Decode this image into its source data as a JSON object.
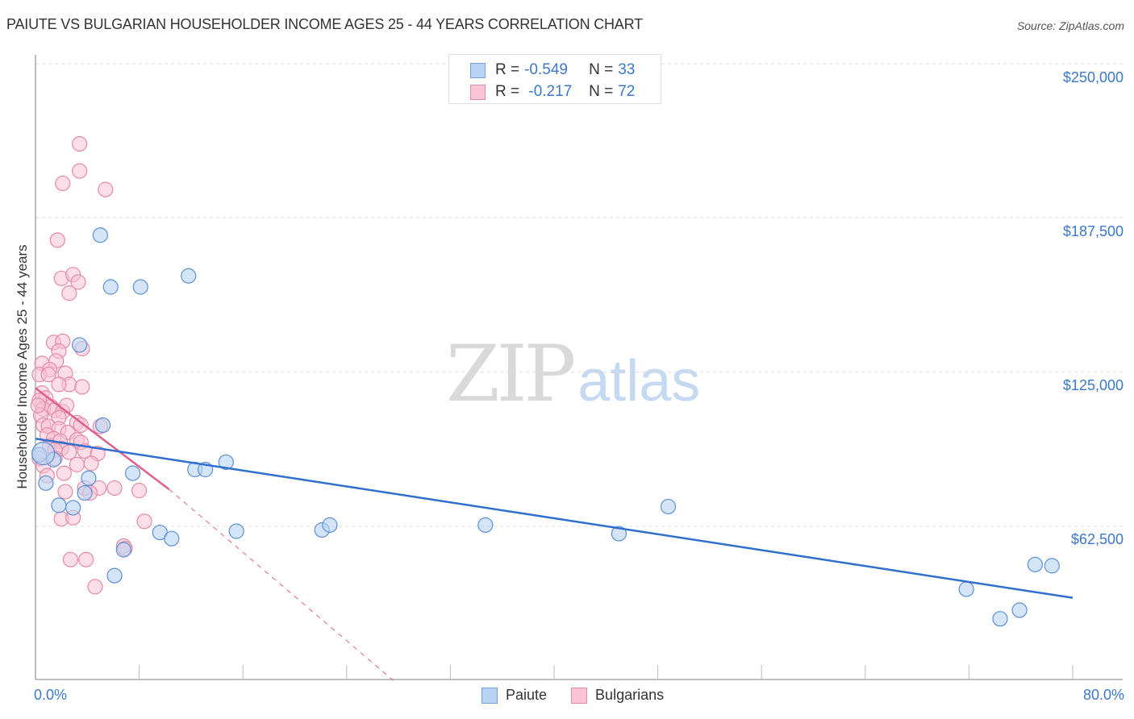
{
  "header": {
    "title": "PAIUTE VS BULGARIAN HOUSEHOLDER INCOME AGES 25 - 44 YEARS CORRELATION CHART",
    "source": "Source: ZipAtlas.com"
  },
  "watermark": {
    "zip": "ZIP",
    "atlas": "atlas"
  },
  "legend_top": {
    "rows": [
      {
        "series": "Paiute",
        "r_label": "R =",
        "r_value": "-0.549",
        "n_label": "N =",
        "n_value": "33"
      },
      {
        "series": "Bulgarians",
        "r_label": "R =",
        "r_value": " -0.217",
        "n_label": "N =",
        "n_value": "72"
      }
    ]
  },
  "legend_bottom": {
    "items": [
      {
        "label": "Paiute"
      },
      {
        "label": "Bulgarians"
      }
    ]
  },
  "axes": {
    "ylabel": "Householder Income Ages 25 - 44 years",
    "yticks": [
      "$250,000",
      "$187,500",
      "$125,000",
      "$62,500"
    ],
    "xtick_left": "0.0%",
    "xtick_right": "80.0%"
  },
  "colors": {
    "paiute_fill": "#b9d3f4",
    "paiute_stroke": "#5b8fd6",
    "paiute_line": "#2f6fcf",
    "bulgarian_fill": "#f8c3d3",
    "bulgarian_stroke": "#e68aa6",
    "bulgarian_line": "#e0608a",
    "tick_text": "#3b78c9"
  },
  "chart_data": {
    "type": "scatter",
    "title": "PAIUTE VS BULGARIAN HOUSEHOLDER INCOME AGES 25 - 44 YEARS CORRELATION CHART",
    "xlabel": "",
    "ylabel": "Householder Income Ages 25 - 44 years",
    "xlim": [
      0,
      80
    ],
    "ylim": [
      0,
      255000
    ],
    "x_unit": "%",
    "yticks": [
      62500,
      125000,
      187500,
      250000
    ],
    "grid": true,
    "legend_position": "top-center and bottom-center",
    "series": [
      {
        "name": "Paiute",
        "R": -0.549,
        "N": 33,
        "trend": {
          "x": [
            0,
            80
          ],
          "y": [
            98000,
            33500
          ]
        },
        "points": [
          [
            5.0,
            180500
          ],
          [
            5.8,
            159500
          ],
          [
            8.1,
            159500
          ],
          [
            11.8,
            164000
          ],
          [
            3.4,
            136000
          ],
          [
            5.2,
            103500
          ],
          [
            1.4,
            89500
          ],
          [
            0.3,
            91500
          ],
          [
            0.8,
            80000
          ],
          [
            4.1,
            82000
          ],
          [
            3.8,
            76000
          ],
          [
            1.8,
            71000
          ],
          [
            2.9,
            70000
          ],
          [
            7.5,
            84000
          ],
          [
            12.3,
            85500
          ],
          [
            13.1,
            85500
          ],
          [
            14.7,
            88500
          ],
          [
            9.6,
            60000
          ],
          [
            10.5,
            57500
          ],
          [
            6.8,
            53000
          ],
          [
            6.1,
            42500
          ],
          [
            15.5,
            60500
          ],
          [
            22.1,
            61000
          ],
          [
            22.7,
            63000
          ],
          [
            34.7,
            63000
          ],
          [
            45.0,
            59500
          ],
          [
            48.8,
            70500
          ],
          [
            71.8,
            37000
          ],
          [
            77.1,
            47000
          ],
          [
            78.4,
            46500
          ],
          [
            74.4,
            25000
          ],
          [
            75.9,
            28500
          ],
          [
            0.6,
            92000
          ]
        ]
      },
      {
        "name": "Bulgarians",
        "R": -0.217,
        "N": 72,
        "trend": {
          "x": [
            0,
            10.3
          ],
          "y": [
            118500,
            77500
          ],
          "dashed_extension_to": [
            27.6,
            0
          ]
        },
        "points": [
          [
            3.4,
            217500
          ],
          [
            3.4,
            206500
          ],
          [
            2.1,
            201500
          ],
          [
            5.4,
            199000
          ],
          [
            1.7,
            178500
          ],
          [
            2.0,
            163000
          ],
          [
            2.9,
            164500
          ],
          [
            3.3,
            161500
          ],
          [
            2.6,
            157000
          ],
          [
            1.4,
            137000
          ],
          [
            2.1,
            137500
          ],
          [
            1.8,
            133500
          ],
          [
            3.6,
            134500
          ],
          [
            1.6,
            129500
          ],
          [
            0.5,
            128500
          ],
          [
            1.1,
            126000
          ],
          [
            2.3,
            124500
          ],
          [
            0.3,
            124000
          ],
          [
            1.0,
            124000
          ],
          [
            2.6,
            120000
          ],
          [
            1.8,
            120000
          ],
          [
            3.6,
            119000
          ],
          [
            0.5,
            116500
          ],
          [
            0.8,
            114500
          ],
          [
            0.3,
            113500
          ],
          [
            1.2,
            111000
          ],
          [
            0.6,
            110000
          ],
          [
            1.5,
            109500
          ],
          [
            2.1,
            109000
          ],
          [
            0.4,
            107500
          ],
          [
            1.8,
            106500
          ],
          [
            3.2,
            104500
          ],
          [
            0.6,
            103500
          ],
          [
            1.0,
            103000
          ],
          [
            1.8,
            102000
          ],
          [
            2.5,
            100500
          ],
          [
            3.5,
            103500
          ],
          [
            5.0,
            103000
          ],
          [
            0.9,
            99500
          ],
          [
            1.4,
            98000
          ],
          [
            1.9,
            97000
          ],
          [
            3.2,
            97500
          ],
          [
            3.5,
            96500
          ],
          [
            1.1,
            95000
          ],
          [
            2.0,
            94000
          ],
          [
            3.8,
            93000
          ],
          [
            1.5,
            93500
          ],
          [
            2.6,
            92500
          ],
          [
            4.8,
            92000
          ],
          [
            0.3,
            90000
          ],
          [
            1.5,
            90000
          ],
          [
            0.6,
            87000
          ],
          [
            3.2,
            87500
          ],
          [
            4.3,
            88000
          ],
          [
            2.2,
            84000
          ],
          [
            0.9,
            83000
          ],
          [
            3.8,
            78000
          ],
          [
            4.9,
            78000
          ],
          [
            6.1,
            78000
          ],
          [
            8.0,
            77000
          ],
          [
            2.3,
            76500
          ],
          [
            4.2,
            76000
          ],
          [
            2.0,
            65500
          ],
          [
            2.9,
            66000
          ],
          [
            8.4,
            64500
          ],
          [
            6.8,
            54500
          ],
          [
            2.7,
            49000
          ],
          [
            3.9,
            49000
          ],
          [
            4.6,
            38000
          ],
          [
            0.2,
            111500
          ],
          [
            2.4,
            111500
          ],
          [
            6.9,
            53500
          ]
        ]
      }
    ]
  }
}
